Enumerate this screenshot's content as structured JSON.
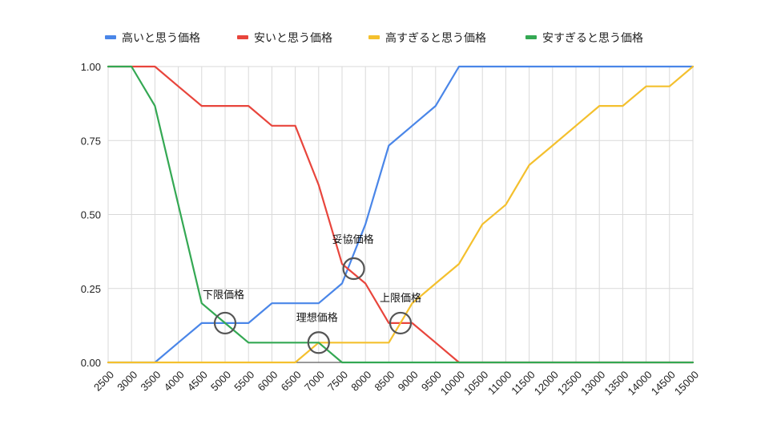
{
  "chart_data": {
    "type": "line",
    "title": "",
    "xlabel": "",
    "ylabel": "",
    "categories": [
      "2500",
      "3000",
      "3500",
      "4000",
      "4500",
      "5000",
      "5500",
      "6000",
      "6500",
      "7000",
      "7500",
      "8000",
      "8500",
      "9000",
      "9500",
      "10000",
      "10500",
      "11000",
      "11500",
      "12000",
      "12500",
      "13000",
      "13500",
      "14000",
      "14500",
      "15000"
    ],
    "y_ticks": [
      "0.00",
      "0.25",
      "0.50",
      "0.75",
      "1.00"
    ],
    "ylim": [
      0,
      1
    ],
    "grid": true,
    "legend_position": "top",
    "series": [
      {
        "name": "高いと思う価格",
        "color": "#4a86e8",
        "values": [
          0,
          0,
          0,
          0.067,
          0.133,
          0.133,
          0.133,
          0.2,
          0.2,
          0.2,
          0.267,
          0.467,
          0.733,
          0.8,
          0.867,
          1,
          1,
          1,
          1,
          1,
          1,
          1,
          1,
          1,
          1,
          1
        ]
      },
      {
        "name": "安いと思う価格",
        "color": "#e8453c",
        "values": [
          1,
          1,
          1,
          0.933,
          0.867,
          0.867,
          0.867,
          0.8,
          0.8,
          0.6,
          0.333,
          0.267,
          0.133,
          0.133,
          0.067,
          0,
          0,
          0,
          0,
          0,
          0,
          0,
          0,
          0,
          0,
          0
        ]
      },
      {
        "name": "高すぎると思う価格",
        "color": "#f4c02e",
        "values": [
          0,
          0,
          0,
          0,
          0,
          0,
          0,
          0,
          0,
          0.067,
          0.067,
          0.067,
          0.067,
          0.2,
          0.267,
          0.333,
          0.467,
          0.533,
          0.667,
          0.733,
          0.8,
          0.867,
          0.867,
          0.933,
          0.933,
          1
        ]
      },
      {
        "name": "安すぎると思う価格",
        "color": "#34a853",
        "values": [
          1,
          1,
          0.867,
          0.533,
          0.2,
          0.133,
          0.067,
          0.067,
          0.067,
          0.067,
          0,
          0,
          0,
          0,
          0,
          0,
          0,
          0,
          0,
          0,
          0,
          0,
          0,
          0,
          0,
          0
        ]
      }
    ],
    "annotations": [
      {
        "label": "下限価格",
        "x": 5000,
        "y": 0.133
      },
      {
        "label": "理想価格",
        "x": 7000,
        "y": 0.067
      },
      {
        "label": "妥協価格",
        "x": 7750,
        "y": 0.317
      },
      {
        "label": "上限価格",
        "x": 8750,
        "y": 0.133
      }
    ]
  }
}
